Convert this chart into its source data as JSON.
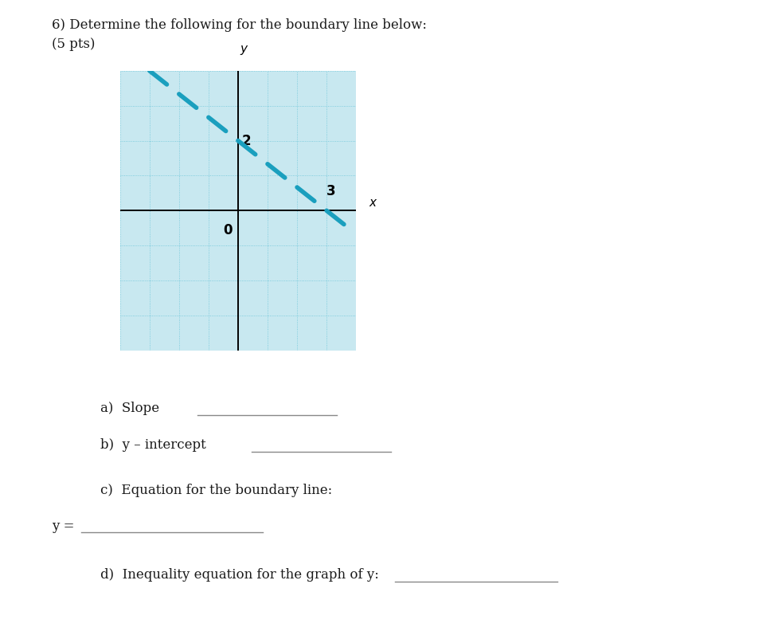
{
  "title_line1": "6) Determine the following for the boundary line below:",
  "title_line2": "(5 pts)",
  "background_color": "#ffffff",
  "graph_bg_color": "#c8e8f0",
  "grid_color": "#6cc5d8",
  "axis_color": "#000000",
  "line_color": "#1a9fbe",
  "xlim": [
    -4,
    4
  ],
  "ylim": [
    -4,
    4
  ],
  "label_0": "0",
  "label_2": "2",
  "label_3": "3",
  "font_size_title": 12,
  "font_size_text": 12,
  "font_size_graph": 11,
  "graph_box_color": "#aaaaaa"
}
